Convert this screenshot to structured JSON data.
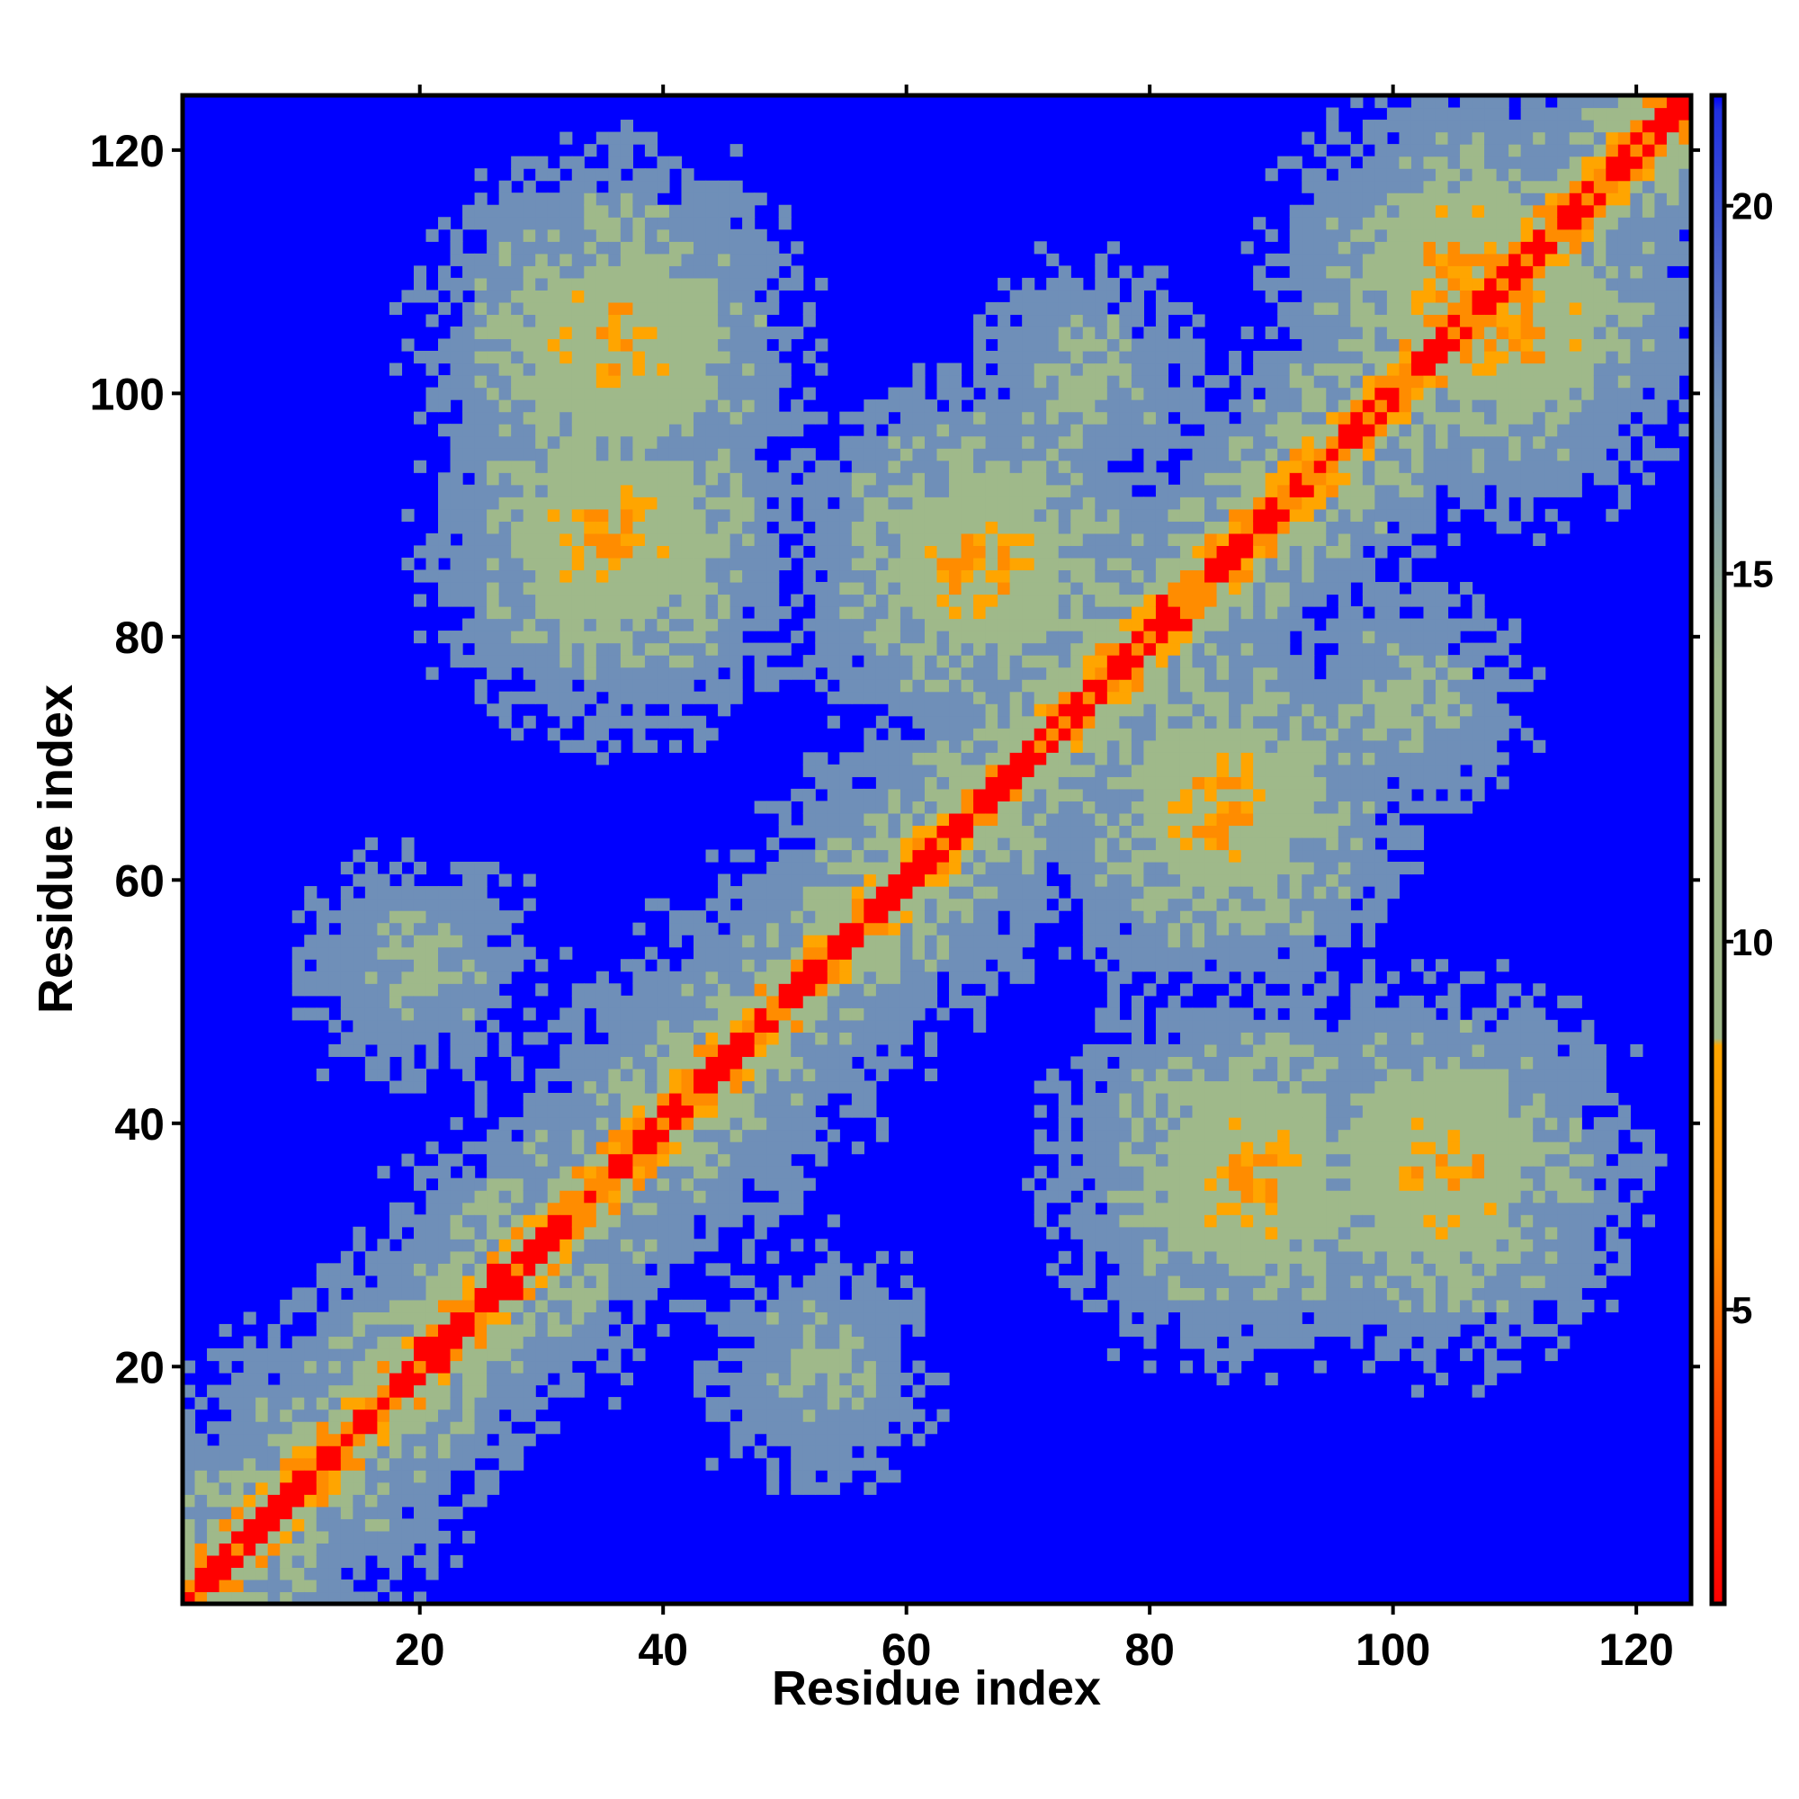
{
  "chart_data": {
    "type": "heatmap",
    "title": "",
    "xlabel": "Residue index",
    "ylabel": "Residue index",
    "n_residues": 124,
    "xlim": [
      1,
      124
    ],
    "ylim": [
      1,
      124
    ],
    "x_ticks": [
      20,
      40,
      60,
      80,
      100,
      120
    ],
    "y_ticks": [
      20,
      40,
      60,
      80,
      100,
      120
    ],
    "colorbar": {
      "range": [
        1,
        21.5
      ],
      "ticks": [
        5,
        10,
        15,
        20
      ],
      "position": "right"
    },
    "colors": {
      "background": "#0000ff",
      "diagonal": "#ff0000",
      "near_contact": "#ff8c00",
      "contact": "#ffa500",
      "medium": "#9fb98a",
      "far": "#6f8fb8",
      "frame": "#000000"
    },
    "contact_regions": [
      {
        "x": 37,
        "y": 88,
        "strength": 6
      },
      {
        "x": 35,
        "y": 104,
        "strength": 6
      },
      {
        "x": 66,
        "y": 86,
        "strength": 6
      },
      {
        "x": 86,
        "y": 66,
        "strength": 6
      },
      {
        "x": 88,
        "y": 36,
        "strength": 6
      },
      {
        "x": 104,
        "y": 36,
        "strength": 6
      },
      {
        "x": 106,
        "y": 110,
        "strength": 6
      },
      {
        "x": 110,
        "y": 106,
        "strength": 6
      },
      {
        "x": 53,
        "y": 20,
        "strength": 12
      },
      {
        "x": 20,
        "y": 53,
        "strength": 12
      },
      {
        "x": 75,
        "y": 101,
        "strength": 12
      },
      {
        "x": 101,
        "y": 75,
        "strength": 12
      }
    ]
  }
}
